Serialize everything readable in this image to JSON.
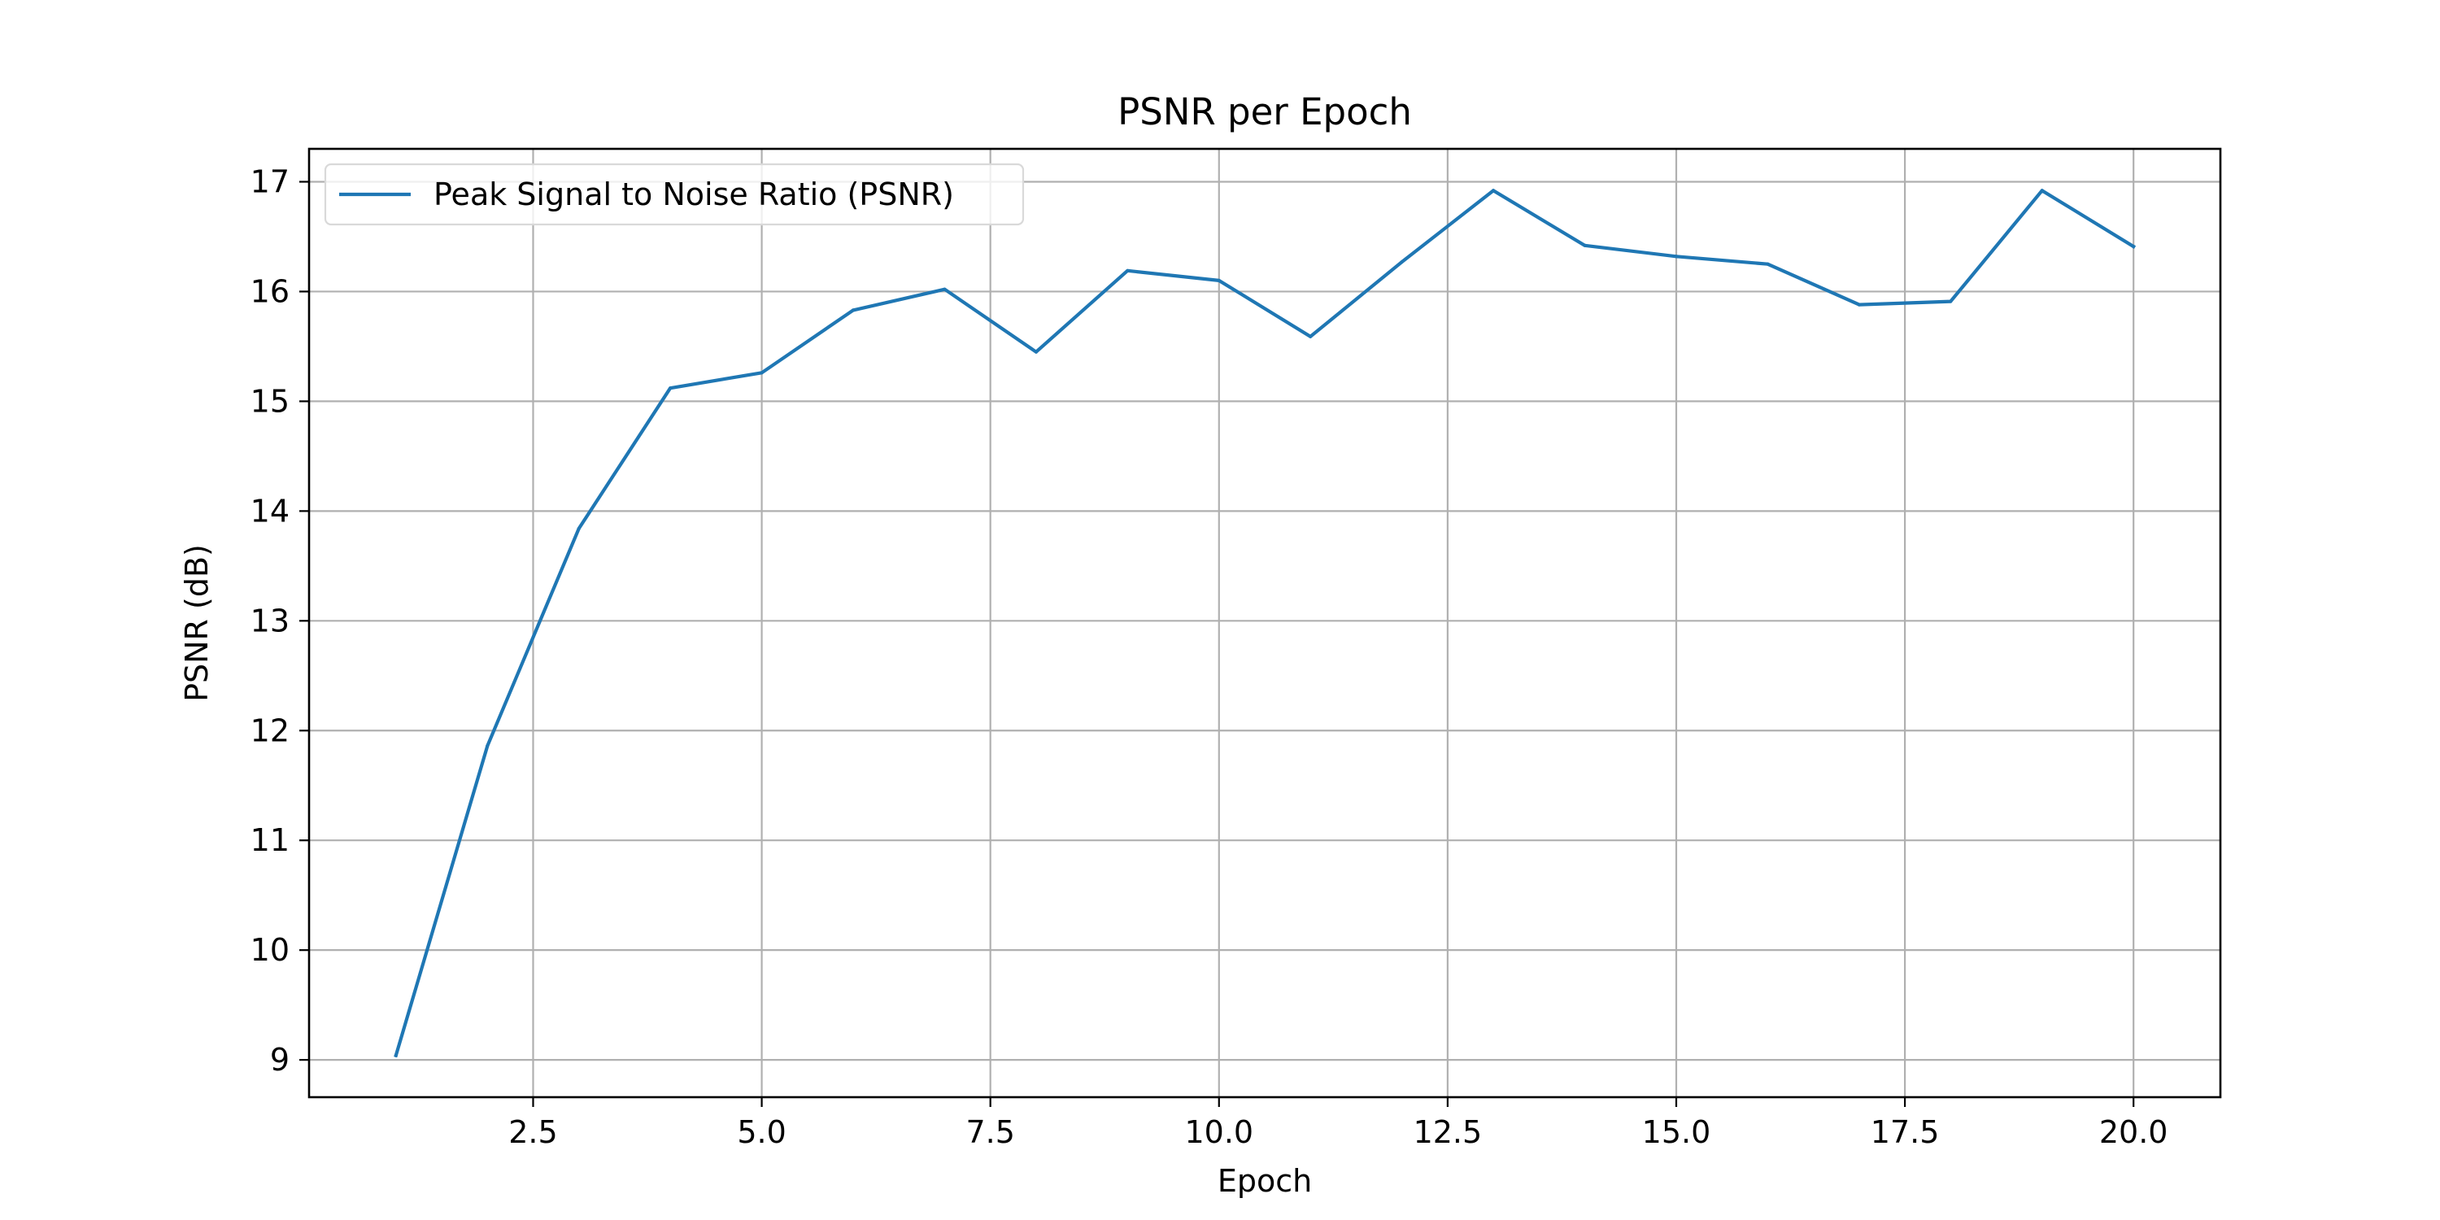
{
  "chart_data": {
    "type": "line",
    "title": "PSNR per Epoch",
    "xlabel": "Epoch",
    "ylabel": "PSNR (dB)",
    "xlim": [
      0.05,
      20.95
    ],
    "ylim": [
      8.66,
      17.3
    ],
    "x_ticks": [
      2.5,
      5.0,
      7.5,
      10.0,
      12.5,
      15.0,
      17.5,
      20.0
    ],
    "x_tick_labels": [
      "2.5",
      "5.0",
      "7.5",
      "10.0",
      "12.5",
      "15.0",
      "17.5",
      "20.0"
    ],
    "y_ticks": [
      9,
      10,
      11,
      12,
      13,
      14,
      15,
      16,
      17
    ],
    "y_tick_labels": [
      "9",
      "10",
      "11",
      "12",
      "13",
      "14",
      "15",
      "16",
      "17"
    ],
    "grid": true,
    "legend_position": "top-left",
    "series": [
      {
        "name": "Peak Signal to Noise Ratio (PSNR)",
        "color": "#1f77b4",
        "x": [
          1,
          2,
          3,
          4,
          5,
          6,
          7,
          8,
          9,
          10,
          11,
          12,
          13,
          14,
          15,
          16,
          17,
          18,
          19,
          20
        ],
        "y": [
          9.04,
          11.86,
          13.84,
          15.12,
          15.26,
          15.83,
          16.02,
          15.45,
          16.19,
          16.1,
          15.59,
          16.27,
          16.92,
          16.42,
          16.32,
          16.25,
          15.88,
          15.91,
          16.92,
          16.41
        ]
      }
    ]
  }
}
